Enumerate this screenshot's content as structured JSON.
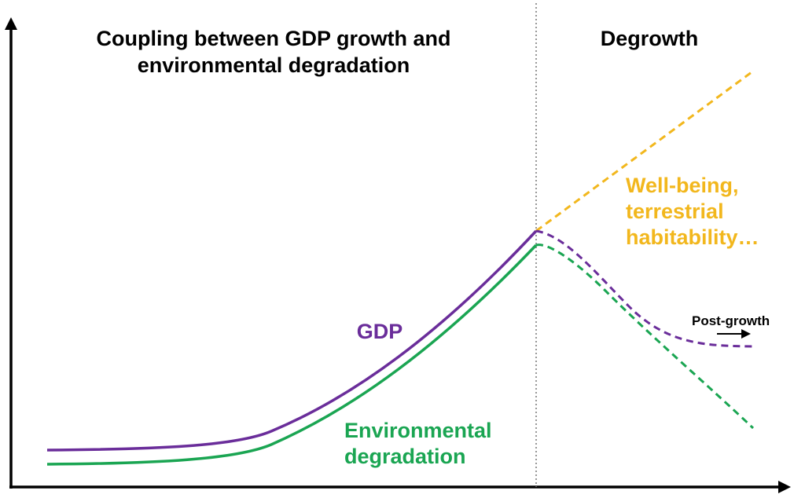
{
  "titles": {
    "coupling_line1": "Coupling between GDP growth and",
    "coupling_line2": "environmental degradation",
    "degrowth": "Degrowth"
  },
  "labels": {
    "gdp": "GDP",
    "environmental_line1": "Environmental",
    "environmental_line2": "degradation",
    "wellbeing_line1": "Well-being,",
    "wellbeing_line2": "terrestrial",
    "wellbeing_line3": "habitability…",
    "post_growth": "Post-growth"
  },
  "colors": {
    "gdp": "#6a2d9a",
    "environmental": "#1aa552",
    "wellbeing": "#f2b71d",
    "axis": "#000000",
    "divider": "#777777"
  },
  "icons": {
    "y_axis_arrow": "arrow-up-icon",
    "x_axis_arrow": "arrow-right-icon",
    "post_growth_arrow": "arrow-right-icon"
  }
}
